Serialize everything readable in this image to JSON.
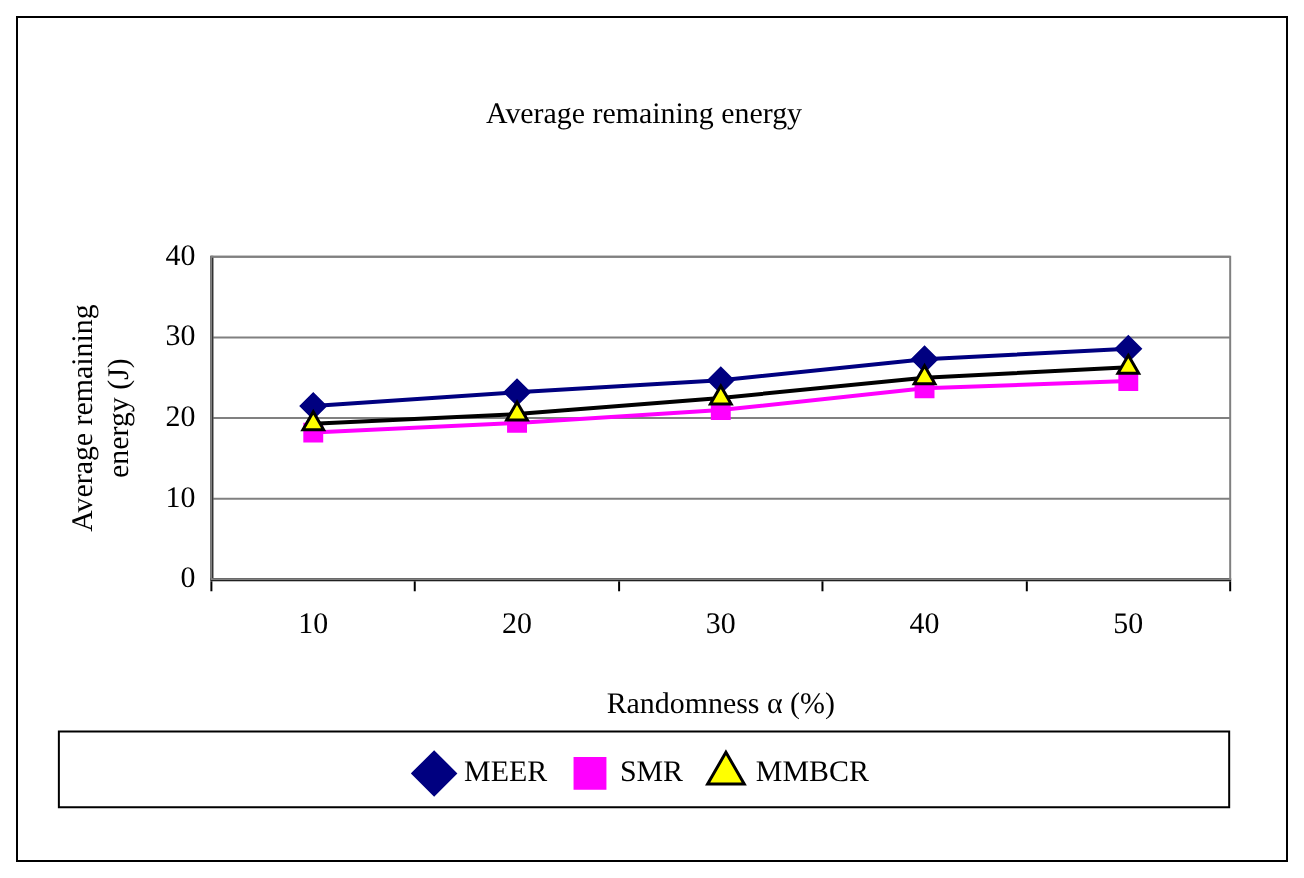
{
  "chart_data": {
    "type": "line",
    "title": "Average remaining energy",
    "xlabel": "Randomness α (%)",
    "ylabel": "Average remaining energy (J)",
    "categories": [
      "10",
      "20",
      "30",
      "40",
      "50"
    ],
    "series": [
      {
        "name": "MEER",
        "color": "#000080",
        "marker": "diamond",
        "values": [
          21.5,
          23.2,
          24.7,
          27.3,
          28.6
        ]
      },
      {
        "name": "SMR",
        "color": "#ff00ff",
        "marker": "square",
        "values": [
          18.2,
          19.4,
          21,
          23.7,
          24.6
        ]
      },
      {
        "name": "MMBCR",
        "color": "#000000",
        "marker": "triangle",
        "values": [
          19.3,
          20.5,
          22.5,
          25,
          26.3
        ]
      }
    ],
    "ylim": [
      0,
      40
    ],
    "yticks": [
      0,
      10,
      20,
      30,
      40
    ],
    "grid": "y",
    "legend": "bottom"
  }
}
